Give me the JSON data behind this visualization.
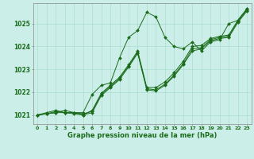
{
  "title": "Graphe pression niveau de la mer (hPa)",
  "bg_color": "#cceee8",
  "grid_color": "#aaddcc",
  "line_color": "#1a6b1a",
  "xlim": [
    -0.5,
    23.5
  ],
  "ylim": [
    1020.6,
    1025.9
  ],
  "yticks": [
    1021,
    1022,
    1023,
    1024,
    1025
  ],
  "xticks": [
    0,
    1,
    2,
    3,
    4,
    5,
    6,
    7,
    8,
    9,
    10,
    11,
    12,
    13,
    14,
    15,
    16,
    17,
    18,
    19,
    20,
    21,
    22,
    23
  ],
  "lines": [
    [
      1021.0,
      1021.05,
      1021.1,
      1021.2,
      1021.1,
      1021.1,
      1021.9,
      1022.3,
      1022.4,
      1023.5,
      1024.4,
      1024.7,
      1025.5,
      1025.3,
      1024.4,
      1024.0,
      1023.9,
      1024.2,
      1023.8,
      1024.2,
      1024.3,
      1025.0,
      1025.15,
      1025.65
    ],
    [
      1021.0,
      1021.1,
      1021.2,
      1021.1,
      1021.1,
      1021.0,
      1021.1,
      1021.85,
      1022.2,
      1022.55,
      1023.1,
      1023.7,
      1022.1,
      1022.05,
      1022.3,
      1022.7,
      1023.2,
      1023.8,
      1023.9,
      1024.25,
      1024.35,
      1024.4,
      1025.05,
      1025.55
    ],
    [
      1021.0,
      1021.05,
      1021.15,
      1021.1,
      1021.1,
      1021.05,
      1021.15,
      1021.9,
      1022.25,
      1022.6,
      1023.15,
      1023.75,
      1022.15,
      1022.1,
      1022.35,
      1022.75,
      1023.25,
      1023.9,
      1023.95,
      1024.3,
      1024.4,
      1024.45,
      1025.1,
      1025.6
    ],
    [
      1021.0,
      1021.05,
      1021.1,
      1021.1,
      1021.05,
      1021.0,
      1021.2,
      1021.95,
      1022.3,
      1022.65,
      1023.2,
      1023.8,
      1022.2,
      1022.2,
      1022.45,
      1022.85,
      1023.35,
      1024.0,
      1024.05,
      1024.35,
      1024.45,
      1024.5,
      1025.15,
      1025.65
    ]
  ]
}
